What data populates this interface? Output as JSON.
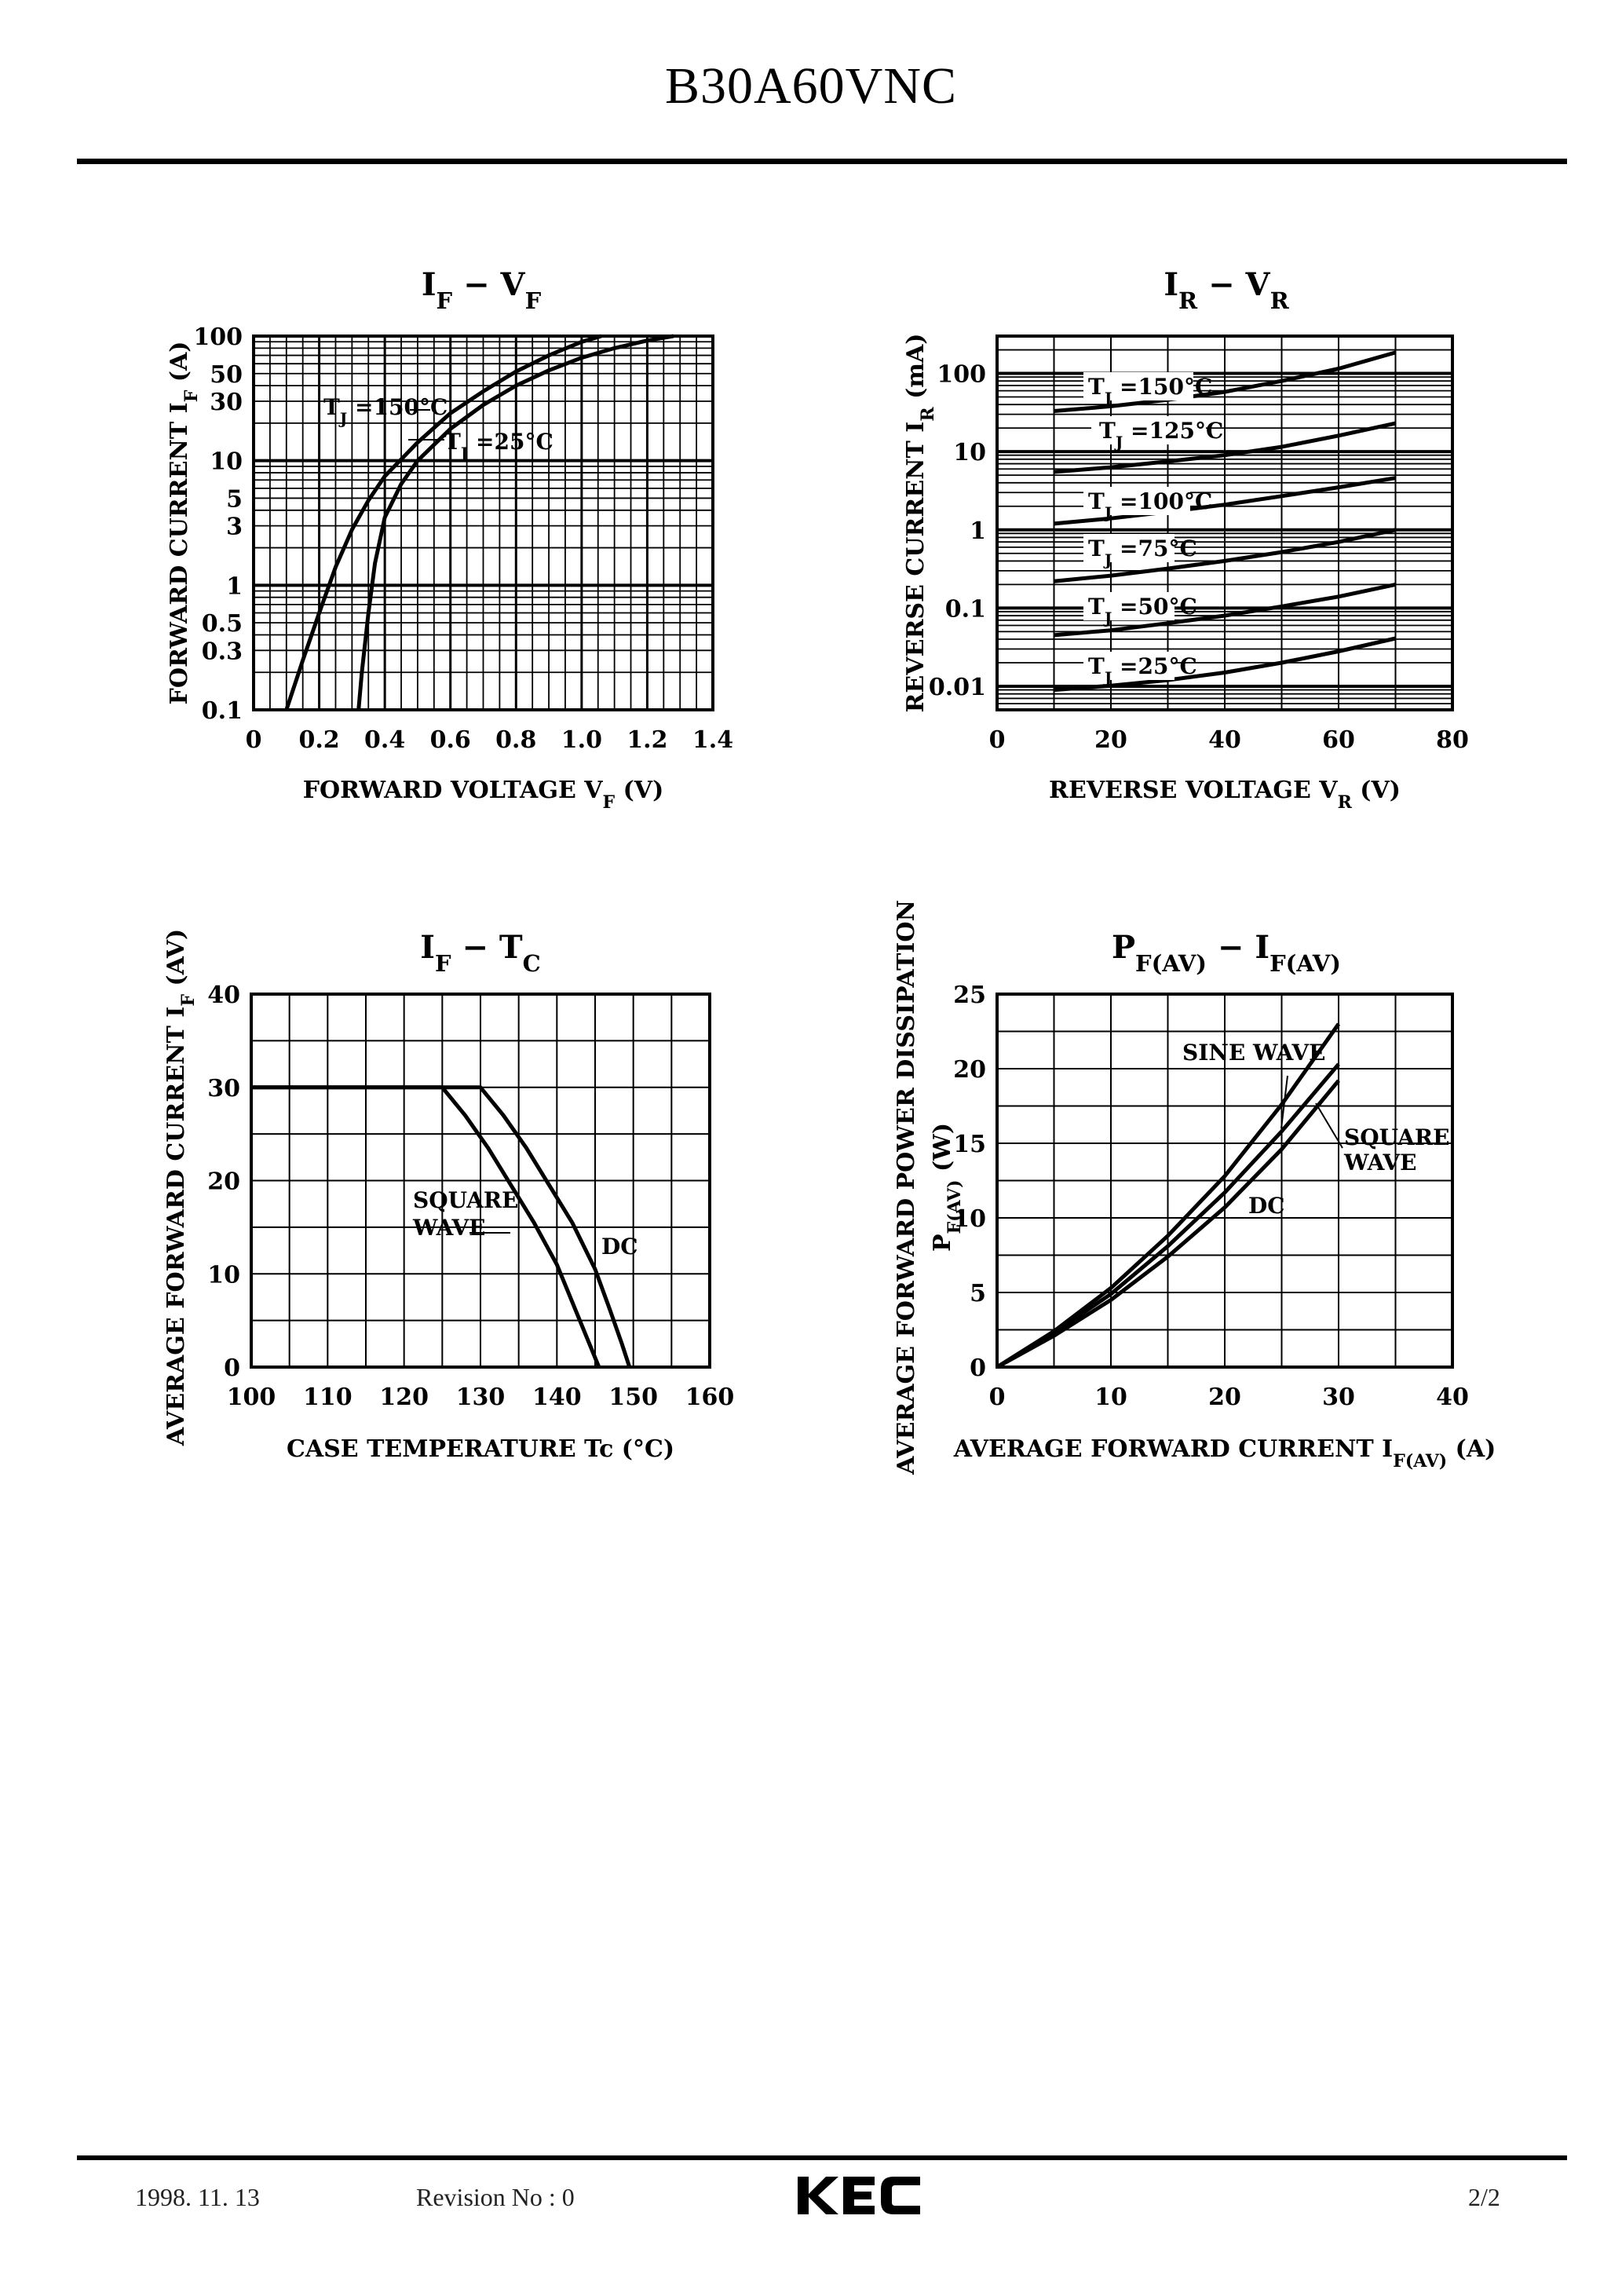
{
  "page": {
    "title": "B30A60VNC",
    "footer": {
      "date": "1998. 11. 13",
      "revision": "Revision No : 0",
      "logo": "KEC",
      "page": "2/2"
    }
  },
  "chart_data": [
    {
      "id": "if_vf",
      "type": "line",
      "title": {
        "parts": [
          [
            "I",
            ""
          ],
          [
            "F",
            "sub"
          ],
          [
            " − ",
            ""
          ],
          [
            "V",
            ""
          ],
          [
            "F",
            "sub"
          ]
        ]
      },
      "xlabel": {
        "parts": [
          [
            "FORWARD VOLTAGE V",
            ""
          ],
          [
            "F",
            "sub"
          ],
          [
            " (V)",
            ""
          ]
        ]
      },
      "ylabel": {
        "parts": [
          [
            "FORWARD CURRENT I",
            ""
          ],
          [
            "F",
            "sub"
          ],
          [
            " (A)",
            ""
          ]
        ]
      },
      "xlim": [
        0,
        1.4
      ],
      "ylim": [
        0.1,
        100
      ],
      "yscale": "log",
      "x_ticks": [
        0,
        0.2,
        0.4,
        0.6,
        0.8,
        1.0,
        1.2,
        1.4
      ],
      "x_tick_labels": [
        "0",
        "0.2",
        "0.4",
        "0.6",
        "0.8",
        "1.0",
        "1.2",
        "1.4"
      ],
      "y_ticks": [
        0.1,
        0.3,
        0.5,
        1,
        3,
        5,
        10,
        30,
        50,
        100
      ],
      "y_tick_labels": [
        "0.1",
        "0.3",
        "0.5",
        "1",
        "3",
        "5",
        "10",
        "30",
        "50",
        "100"
      ],
      "grid": true,
      "series": [
        {
          "name": "T_J=150°C",
          "label": {
            "parts": [
              [
                "T",
                ""
              ],
              [
                "J",
                "sub"
              ],
              [
                " =150°C",
                ""
              ]
            ]
          },
          "points": [
            [
              0.1,
              0.1
            ],
            [
              0.15,
              0.25
            ],
            [
              0.2,
              0.6
            ],
            [
              0.25,
              1.4
            ],
            [
              0.3,
              2.8
            ],
            [
              0.35,
              4.8
            ],
            [
              0.4,
              7.5
            ],
            [
              0.5,
              14
            ],
            [
              0.6,
              24
            ],
            [
              0.7,
              36
            ],
            [
              0.8,
              52
            ],
            [
              0.9,
              70
            ],
            [
              1.0,
              90
            ],
            [
              1.06,
              100
            ]
          ]
        },
        {
          "name": "T_J=25°C",
          "label": {
            "parts": [
              [
                "T",
                ""
              ],
              [
                "J",
                "sub"
              ],
              [
                " =25°C",
                ""
              ]
            ]
          },
          "points": [
            [
              0.32,
              0.1
            ],
            [
              0.33,
              0.2
            ],
            [
              0.35,
              0.6
            ],
            [
              0.37,
              1.5
            ],
            [
              0.4,
              3.5
            ],
            [
              0.45,
              6.5
            ],
            [
              0.5,
              10
            ],
            [
              0.6,
              18
            ],
            [
              0.7,
              28
            ],
            [
              0.8,
              40
            ],
            [
              0.9,
              53
            ],
            [
              1.0,
              67
            ],
            [
              1.1,
              80
            ],
            [
              1.2,
              92
            ],
            [
              1.28,
              100
            ]
          ]
        }
      ]
    },
    {
      "id": "ir_vr",
      "type": "line",
      "title": {
        "parts": [
          [
            "I",
            ""
          ],
          [
            "R",
            "sub"
          ],
          [
            " − ",
            ""
          ],
          [
            "V",
            ""
          ],
          [
            "R",
            "sub"
          ]
        ]
      },
      "xlabel": {
        "parts": [
          [
            "REVERSE VOLTAGE V",
            ""
          ],
          [
            "R",
            "sub"
          ],
          [
            " (V)",
            ""
          ]
        ]
      },
      "ylabel": {
        "parts": [
          [
            "REVERSE CURRENT I",
            ""
          ],
          [
            "R",
            "sub"
          ],
          [
            " (mA)",
            ""
          ]
        ]
      },
      "xlim": [
        0,
        80
      ],
      "ylim": [
        0.005,
        300
      ],
      "yscale": "log",
      "x_ticks": [
        0,
        20,
        40,
        60,
        80
      ],
      "x_tick_labels": [
        "0",
        "20",
        "40",
        "60",
        "80"
      ],
      "y_ticks": [
        0.01,
        0.1,
        1,
        10,
        100
      ],
      "y_tick_labels": [
        "0.01",
        "0.1",
        "1",
        "10",
        "100"
      ],
      "grid": true,
      "series": [
        {
          "name": "T_J=150°C",
          "label": {
            "parts": [
              [
                "T",
                ""
              ],
              [
                "J",
                "sub"
              ],
              [
                " =150°C",
                ""
              ]
            ]
          },
          "x": [
            10,
            20,
            30,
            40,
            50,
            60,
            70
          ],
          "values": [
            33,
            38,
            46,
            58,
            80,
            115,
            185
          ]
        },
        {
          "name": "T_J=125°C",
          "label": {
            "parts": [
              [
                "T",
                ""
              ],
              [
                "J",
                "sub"
              ],
              [
                " =125°C",
                ""
              ]
            ]
          },
          "x": [
            10,
            20,
            30,
            40,
            50,
            60,
            70
          ],
          "values": [
            5.5,
            6.3,
            7.5,
            9,
            11.5,
            16,
            23
          ]
        },
        {
          "name": "T_J=100°C",
          "label": {
            "parts": [
              [
                "T",
                ""
              ],
              [
                "J",
                "sub"
              ],
              [
                " =100°C",
                ""
              ]
            ]
          },
          "x": [
            10,
            20,
            30,
            40,
            50,
            60,
            70
          ],
          "values": [
            1.2,
            1.4,
            1.7,
            2.1,
            2.7,
            3.5,
            4.6
          ]
        },
        {
          "name": "T_J=75°C",
          "label": {
            "parts": [
              [
                "T",
                ""
              ],
              [
                "J",
                "sub"
              ],
              [
                " =75°C",
                ""
              ]
            ]
          },
          "x": [
            10,
            20,
            30,
            40,
            50,
            60,
            70
          ],
          "values": [
            0.22,
            0.26,
            0.32,
            0.4,
            0.52,
            0.7,
            1.0
          ]
        },
        {
          "name": "T_J=50°C",
          "label": {
            "parts": [
              [
                "T",
                ""
              ],
              [
                "J",
                "sub"
              ],
              [
                " =50°C",
                ""
              ]
            ]
          },
          "x": [
            10,
            20,
            30,
            40,
            50,
            60,
            70
          ],
          "values": [
            0.045,
            0.052,
            0.064,
            0.08,
            0.105,
            0.14,
            0.2
          ]
        },
        {
          "name": "T_J=25°C",
          "label": {
            "parts": [
              [
                "T",
                ""
              ],
              [
                "J",
                "sub"
              ],
              [
                " =25°C",
                ""
              ]
            ]
          },
          "x": [
            10,
            20,
            30,
            40,
            50,
            60,
            70
          ],
          "values": [
            0.009,
            0.0102,
            0.012,
            0.015,
            0.02,
            0.028,
            0.041
          ]
        }
      ]
    },
    {
      "id": "if_tc",
      "type": "line",
      "title": {
        "parts": [
          [
            "I",
            ""
          ],
          [
            "F",
            "sub"
          ],
          [
            " − ",
            ""
          ],
          [
            "T",
            ""
          ],
          [
            "C",
            "sub"
          ]
        ]
      },
      "xlabel": {
        "parts": [
          [
            "CASE TEMPERATURE Tc (°C)",
            ""
          ]
        ]
      },
      "ylabel": {
        "parts": [
          [
            "AVERAGE FORWARD CURRENT I",
            ""
          ],
          [
            "F",
            "sub"
          ],
          [
            " (AV)",
            ""
          ]
        ]
      },
      "xlim": [
        100,
        160
      ],
      "ylim": [
        0,
        40
      ],
      "yscale": "linear",
      "x_ticks": [
        100,
        110,
        120,
        130,
        140,
        150,
        160
      ],
      "x_tick_labels": [
        "100",
        "110",
        "120",
        "130",
        "140",
        "150",
        "160"
      ],
      "y_ticks": [
        0,
        10,
        20,
        30,
        40
      ],
      "y_tick_labels": [
        "0",
        "10",
        "20",
        "30",
        "40"
      ],
      "grid": true,
      "series": [
        {
          "name": "DC",
          "label": {
            "parts": [
              [
                "DC",
                ""
              ]
            ]
          },
          "points": [
            [
              100,
              30
            ],
            [
              130,
              30
            ],
            [
              133,
              27
            ],
            [
              136,
              23.5
            ],
            [
              139,
              19.5
            ],
            [
              142,
              15.5
            ],
            [
              145,
              10.5
            ],
            [
              147,
              6
            ],
            [
              148.5,
              2.5
            ],
            [
              149.5,
              0
            ]
          ]
        },
        {
          "name": "SQUARE WAVE",
          "label": {
            "parts": [
              [
                "SQUARE",
                ""
              ]
            ]
          },
          "label2": "WAVE",
          "points": [
            [
              100,
              30
            ],
            [
              125,
              30
            ],
            [
              128,
              27
            ],
            [
              131,
              23.5
            ],
            [
              134,
              19.5
            ],
            [
              137,
              15.5
            ],
            [
              140,
              11
            ],
            [
              142,
              7
            ],
            [
              144,
              3
            ],
            [
              145.5,
              0
            ]
          ]
        }
      ]
    },
    {
      "id": "pf_if",
      "type": "line",
      "title": {
        "parts": [
          [
            "P",
            ""
          ],
          [
            "F(AV)",
            "sub"
          ],
          [
            " − ",
            ""
          ],
          [
            "I",
            ""
          ],
          [
            "F(AV)",
            "sub"
          ]
        ]
      },
      "xlabel": {
        "parts": [
          [
            "AVERAGE FORWARD CURRENT I",
            ""
          ],
          [
            "F(AV)",
            "sub"
          ],
          [
            " (A)",
            ""
          ]
        ]
      },
      "ylabel": {
        "parts": [
          [
            "AVERAGE FORWARD POWER DISSIPATION",
            ""
          ]
        ]
      },
      "ylabel2": {
        "parts": [
          [
            "P",
            ""
          ],
          [
            "F(AV)",
            "sub"
          ],
          [
            " (W)",
            ""
          ]
        ]
      },
      "xlim": [
        0,
        40
      ],
      "ylim": [
        0,
        25
      ],
      "yscale": "linear",
      "x_ticks": [
        0,
        10,
        20,
        30,
        40
      ],
      "x_tick_labels": [
        "0",
        "10",
        "20",
        "30",
        "40"
      ],
      "y_ticks": [
        0,
        5,
        10,
        15,
        20,
        25
      ],
      "y_tick_labels": [
        "0",
        "5",
        "10",
        "15",
        "20",
        "25"
      ],
      "grid": true,
      "series": [
        {
          "name": "SINE WAVE",
          "label": {
            "parts": [
              [
                "SINE WAVE",
                ""
              ]
            ]
          },
          "points": [
            [
              0,
              0
            ],
            [
              5,
              2.4
            ],
            [
              10,
              5.3
            ],
            [
              15,
              8.8
            ],
            [
              20,
              12.8
            ],
            [
              25,
              17.6
            ],
            [
              30,
              23
            ]
          ]
        },
        {
          "name": "SQUARE WAVE",
          "label": {
            "parts": [
              [
                "SQUARE",
                ""
              ]
            ]
          },
          "label2": "WAVE",
          "points": [
            [
              0,
              0
            ],
            [
              5,
              2.3
            ],
            [
              10,
              4.9
            ],
            [
              15,
              8.1
            ],
            [
              20,
              11.7
            ],
            [
              25,
              15.8
            ],
            [
              30,
              20.3
            ]
          ]
        },
        {
          "name": "DC",
          "label": {
            "parts": [
              [
                "DC",
                ""
              ]
            ]
          },
          "points": [
            [
              0,
              0
            ],
            [
              5,
              2.1
            ],
            [
              10,
              4.5
            ],
            [
              15,
              7.4
            ],
            [
              20,
              10.7
            ],
            [
              25,
              14.6
            ],
            [
              30,
              19.2
            ]
          ]
        }
      ]
    }
  ]
}
